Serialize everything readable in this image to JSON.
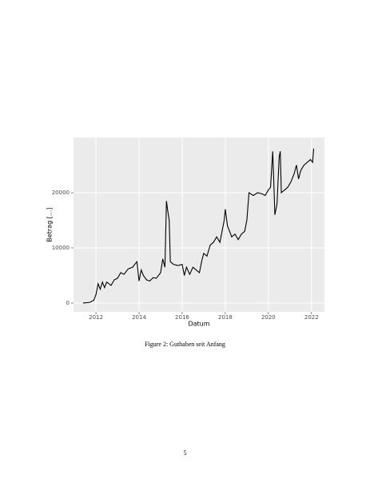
{
  "chart_data": {
    "type": "line",
    "x_label": "Datum",
    "y_label": "Betrag [...]",
    "x": [
      2011.4,
      2011.7,
      2011.9,
      2012.0,
      2012.1,
      2012.2,
      2012.3,
      2012.4,
      2012.5,
      2012.7,
      2012.85,
      2013.0,
      2013.15,
      2013.3,
      2013.5,
      2013.7,
      2013.9,
      2014.0,
      2014.1,
      2014.2,
      2014.35,
      2014.5,
      2014.65,
      2014.8,
      2015.0,
      2015.1,
      2015.2,
      2015.27,
      2015.32,
      2015.4,
      2015.45,
      2015.6,
      2015.8,
      2016.0,
      2016.1,
      2016.2,
      2016.35,
      2016.5,
      2016.65,
      2016.8,
      2016.9,
      2017.0,
      2017.15,
      2017.3,
      2017.45,
      2017.6,
      2017.75,
      2017.85,
      2017.95,
      2018.0,
      2018.1,
      2018.2,
      2018.3,
      2018.45,
      2018.6,
      2018.75,
      2018.9,
      2019.0,
      2019.1,
      2019.3,
      2019.5,
      2019.7,
      2019.85,
      2020.0,
      2020.1,
      2020.2,
      2020.25,
      2020.3,
      2020.4,
      2020.5,
      2020.55,
      2020.6,
      2020.75,
      2020.9,
      2021.05,
      2021.2,
      2021.3,
      2021.4,
      2021.5,
      2021.65,
      2021.8,
      2021.95,
      2022.05,
      2022.1
    ],
    "xlim": [
      2010.96,
      2022.6
    ],
    "xticks": [
      2012,
      2014,
      2016,
      2018,
      2020,
      2022
    ],
    "ylim": [
      -1600,
      30000
    ],
    "yticks": [
      0,
      10000,
      20000
    ],
    "grid": true,
    "series": [
      {
        "color": "#000000",
        "values": [
          0,
          100,
          500,
          1500,
          3500,
          2500,
          3800,
          2800,
          3800,
          3200,
          4200,
          4500,
          5500,
          5200,
          6200,
          6500,
          7500,
          4000,
          6000,
          5000,
          4200,
          4000,
          4600,
          4500,
          5500,
          8000,
          6500,
          18500,
          17000,
          15000,
          7500,
          7000,
          6800,
          7000,
          5000,
          6500,
          5200,
          6500,
          6000,
          5500,
          7500,
          9000,
          8500,
          10500,
          11000,
          12000,
          11000,
          13000,
          15000,
          17000,
          14000,
          13000,
          12000,
          12500,
          11500,
          12500,
          13000,
          15000,
          20000,
          19500,
          20000,
          19800,
          19500,
          20500,
          21000,
          27500,
          22000,
          16000,
          18000,
          26500,
          27500,
          20000,
          20500,
          21000,
          22000,
          23500,
          25000,
          22500,
          24000,
          25000,
          25500,
          26000,
          25500,
          28000
        ]
      }
    ]
  },
  "caption": "Figure 2: Guthaben seit Anfang",
  "page_number": "5"
}
